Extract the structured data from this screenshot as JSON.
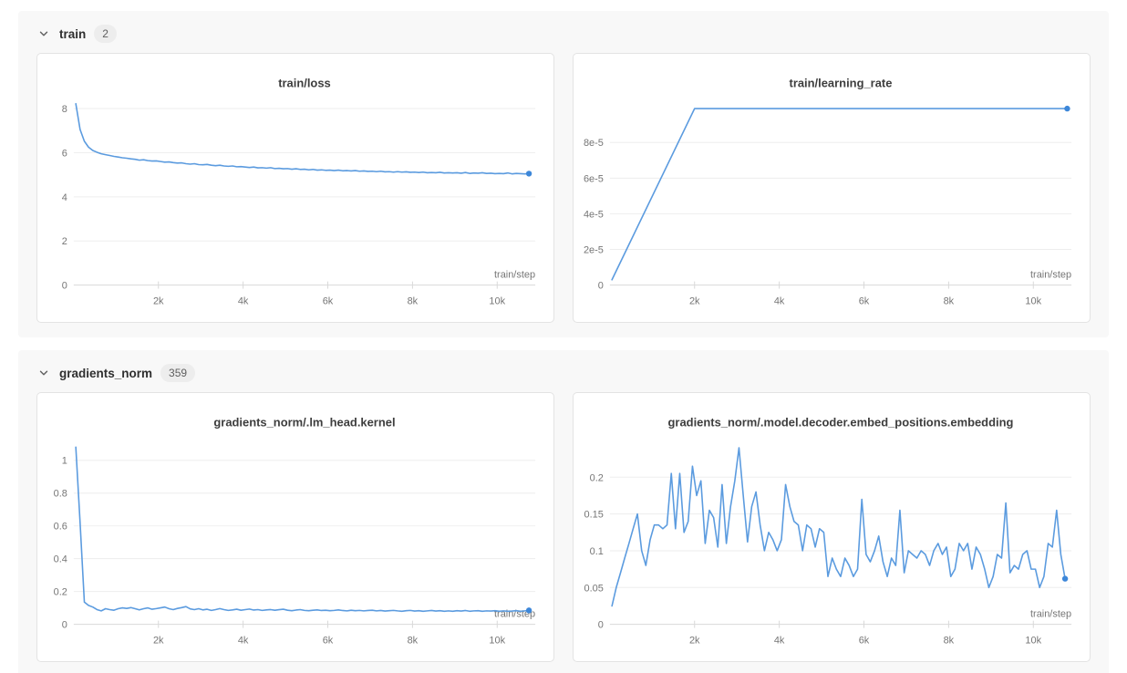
{
  "colors": {
    "line": "#5b9bdf",
    "end_dot": "#3d87d9",
    "grid": "#ededed",
    "axis": "#d9d9d9",
    "tick": "#d9d9d9",
    "panel_bg": "#f8f8f8",
    "card_border": "#e3e3e3",
    "badge_bg": "#ededed"
  },
  "sections": [
    {
      "label": "train",
      "count": "2",
      "chevron_icon": "chevron-down",
      "chart_refs": [
        0,
        1
      ]
    },
    {
      "label": "gradients_norm",
      "count": "359",
      "chevron_icon": "chevron-down",
      "chart_refs": [
        2,
        3
      ]
    }
  ],
  "chart_data": [
    {
      "type": "line",
      "title": "train/loss",
      "xlabel": "train/step",
      "ylabel": "",
      "xlim": [
        0,
        10900
      ],
      "ylim": [
        0,
        8.4
      ],
      "grid": true,
      "legend_position": "none",
      "end_dot": true,
      "x_ticks": [
        [
          2000,
          "2k"
        ],
        [
          4000,
          "4k"
        ],
        [
          6000,
          "6k"
        ],
        [
          8000,
          "8k"
        ],
        [
          10000,
          "10k"
        ]
      ],
      "y_ticks": [
        [
          0,
          "0"
        ],
        [
          2,
          "2"
        ],
        [
          4,
          "4"
        ],
        [
          6,
          "6"
        ],
        [
          8,
          "8"
        ]
      ],
      "series": [
        {
          "name": "train/loss",
          "x0": 50,
          "dx": 100,
          "y": [
            8.22,
            7.05,
            6.52,
            6.25,
            6.1,
            6.02,
            5.95,
            5.91,
            5.87,
            5.83,
            5.8,
            5.77,
            5.75,
            5.72,
            5.7,
            5.66,
            5.68,
            5.64,
            5.62,
            5.63,
            5.6,
            5.57,
            5.58,
            5.55,
            5.53,
            5.54,
            5.5,
            5.48,
            5.5,
            5.46,
            5.45,
            5.47,
            5.43,
            5.41,
            5.43,
            5.4,
            5.38,
            5.4,
            5.36,
            5.37,
            5.35,
            5.33,
            5.35,
            5.31,
            5.32,
            5.3,
            5.32,
            5.28,
            5.29,
            5.27,
            5.28,
            5.25,
            5.27,
            5.24,
            5.25,
            5.22,
            5.24,
            5.21,
            5.22,
            5.2,
            5.21,
            5.19,
            5.21,
            5.18,
            5.19,
            5.17,
            5.19,
            5.16,
            5.17,
            5.15,
            5.16,
            5.14,
            5.16,
            5.13,
            5.14,
            5.12,
            5.14,
            5.12,
            5.13,
            5.11,
            5.12,
            5.1,
            5.12,
            5.09,
            5.1,
            5.09,
            5.11,
            5.08,
            5.09,
            5.08,
            5.09,
            5.07,
            5.1,
            5.06,
            5.08,
            5.07,
            5.09,
            5.06,
            5.07,
            5.05,
            5.06,
            5.05,
            5.08,
            5.04,
            5.06,
            5.05,
            5.04,
            5.05
          ]
        }
      ]
    },
    {
      "type": "line",
      "title": "train/learning_rate",
      "xlabel": "train/step",
      "ylabel": "",
      "xlim": [
        0,
        10900
      ],
      "ylim": [
        0,
        0.000104
      ],
      "grid": true,
      "legend_position": "none",
      "end_dot": true,
      "x_ticks": [
        [
          2000,
          "2k"
        ],
        [
          4000,
          "4k"
        ],
        [
          6000,
          "6k"
        ],
        [
          8000,
          "8k"
        ],
        [
          10000,
          "10k"
        ]
      ],
      "y_ticks": [
        [
          0,
          "0"
        ],
        [
          2e-05,
          "2e-5"
        ],
        [
          4e-05,
          "4e-5"
        ],
        [
          6e-05,
          "6e-5"
        ],
        [
          8e-05,
          "8e-5"
        ]
      ],
      "series": [
        {
          "name": "train/learning_rate",
          "x": [
            50,
            2000,
            10800
          ],
          "y": [
            3e-06,
            9.9e-05,
            9.9e-05
          ]
        }
      ]
    },
    {
      "type": "line",
      "title": "gradients_norm/.lm_head.kernel",
      "xlabel": "train/step",
      "ylabel": "",
      "xlim": [
        0,
        10900
      ],
      "ylim": [
        0,
        1.13
      ],
      "grid": true,
      "legend_position": "none",
      "end_dot": true,
      "x_ticks": [
        [
          2000,
          "2k"
        ],
        [
          4000,
          "4k"
        ],
        [
          6000,
          "6k"
        ],
        [
          8000,
          "8k"
        ],
        [
          10000,
          "10k"
        ]
      ],
      "y_ticks": [
        [
          0,
          "0"
        ],
        [
          0.2,
          "0.2"
        ],
        [
          0.4,
          "0.4"
        ],
        [
          0.6,
          "0.6"
        ],
        [
          0.8,
          "0.8"
        ],
        [
          1,
          "1"
        ]
      ],
      "series": [
        {
          "name": "gradients_norm/.lm_head.kernel",
          "x0": 50,
          "dx": 100,
          "y": [
            1.08,
            0.62,
            0.135,
            0.115,
            0.105,
            0.09,
            0.082,
            0.095,
            0.09,
            0.086,
            0.095,
            0.1,
            0.097,
            0.102,
            0.095,
            0.088,
            0.095,
            0.1,
            0.092,
            0.096,
            0.1,
            0.105,
            0.095,
            0.09,
            0.097,
            0.102,
            0.108,
            0.094,
            0.09,
            0.095,
            0.088,
            0.092,
            0.085,
            0.09,
            0.096,
            0.09,
            0.085,
            0.088,
            0.092,
            0.086,
            0.09,
            0.093,
            0.087,
            0.09,
            0.085,
            0.088,
            0.09,
            0.086,
            0.089,
            0.092,
            0.086,
            0.083,
            0.087,
            0.09,
            0.085,
            0.083,
            0.086,
            0.088,
            0.084,
            0.086,
            0.083,
            0.085,
            0.088,
            0.084,
            0.082,
            0.086,
            0.083,
            0.085,
            0.082,
            0.084,
            0.086,
            0.082,
            0.084,
            0.081,
            0.083,
            0.085,
            0.082,
            0.08,
            0.083,
            0.085,
            0.081,
            0.083,
            0.08,
            0.082,
            0.084,
            0.081,
            0.083,
            0.08,
            0.082,
            0.08,
            0.083,
            0.081,
            0.084,
            0.08,
            0.082,
            0.083,
            0.08,
            0.082,
            0.081,
            0.083,
            0.08,
            0.082,
            0.08,
            0.081,
            0.083,
            0.08,
            0.082,
            0.085
          ]
        }
      ]
    },
    {
      "type": "line",
      "title": "gradients_norm/.model.decoder.embed_positions.embedding",
      "xlabel": "train/step",
      "ylabel": "",
      "xlim": [
        0,
        10900
      ],
      "ylim": [
        0,
        0.252
      ],
      "grid": true,
      "legend_position": "none",
      "end_dot": true,
      "x_ticks": [
        [
          2000,
          "2k"
        ],
        [
          4000,
          "4k"
        ],
        [
          6000,
          "6k"
        ],
        [
          8000,
          "8k"
        ],
        [
          10000,
          "10k"
        ]
      ],
      "y_ticks": [
        [
          0,
          "0"
        ],
        [
          0.05,
          "0.05"
        ],
        [
          0.1,
          "0.1"
        ],
        [
          0.15,
          "0.15"
        ],
        [
          0.2,
          "0.2"
        ]
      ],
      "series": [
        {
          "name": "gradients_norm/.model.decoder.embed_positions.embedding",
          "x0": 50,
          "dx": 100,
          "y": [
            0.025,
            0.05,
            0.07,
            0.09,
            0.11,
            0.13,
            0.15,
            0.1,
            0.08,
            0.115,
            0.135,
            0.135,
            0.13,
            0.135,
            0.205,
            0.13,
            0.205,
            0.125,
            0.14,
            0.215,
            0.175,
            0.195,
            0.11,
            0.155,
            0.145,
            0.105,
            0.19,
            0.11,
            0.16,
            0.195,
            0.24,
            0.175,
            0.112,
            0.16,
            0.18,
            0.135,
            0.1,
            0.125,
            0.115,
            0.1,
            0.115,
            0.19,
            0.16,
            0.14,
            0.135,
            0.1,
            0.135,
            0.13,
            0.105,
            0.13,
            0.125,
            0.065,
            0.09,
            0.075,
            0.065,
            0.09,
            0.08,
            0.065,
            0.075,
            0.17,
            0.095,
            0.085,
            0.1,
            0.12,
            0.085,
            0.065,
            0.09,
            0.08,
            0.155,
            0.07,
            0.1,
            0.095,
            0.09,
            0.1,
            0.095,
            0.08,
            0.1,
            0.11,
            0.095,
            0.105,
            0.065,
            0.075,
            0.11,
            0.1,
            0.11,
            0.075,
            0.105,
            0.095,
            0.075,
            0.05,
            0.065,
            0.095,
            0.09,
            0.165,
            0.07,
            0.08,
            0.075,
            0.095,
            0.1,
            0.075,
            0.075,
            0.05,
            0.065,
            0.11,
            0.105,
            0.155,
            0.095,
            0.062
          ]
        }
      ]
    }
  ]
}
